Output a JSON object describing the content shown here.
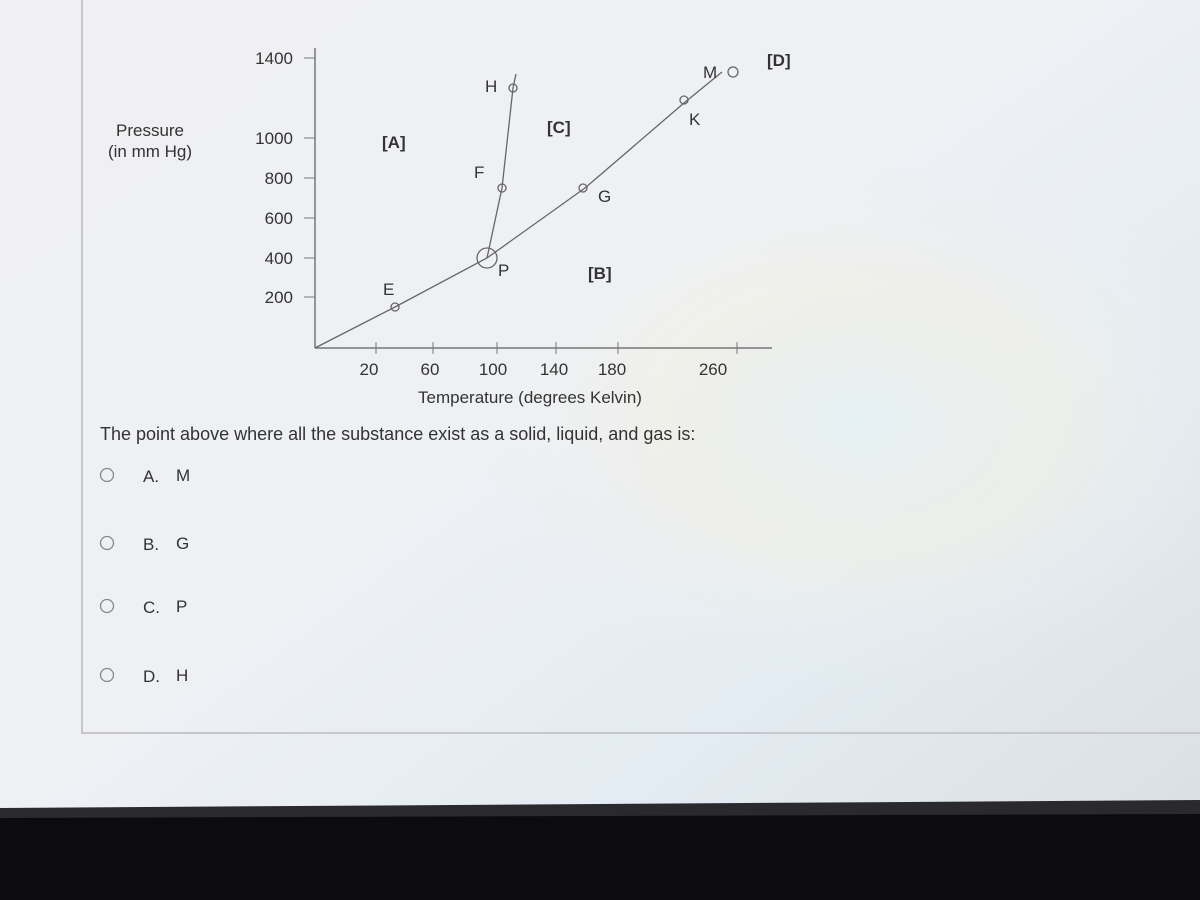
{
  "diagram": {
    "y_axis_label": [
      "Pressure",
      "(in mm Hg)"
    ],
    "x_axis_label": "Temperature (degrees Kelvin)",
    "y_ticks": [
      1400,
      1000,
      800,
      600,
      400,
      200
    ],
    "x_ticks": [
      20,
      60,
      100,
      140,
      180,
      260
    ],
    "points": [
      "H",
      "M",
      "K",
      "F",
      "G",
      "P",
      "E"
    ],
    "regions": [
      "[A]",
      "[C]",
      "[B]",
      "[D]"
    ]
  },
  "question": "The point above where all the substance exist as a solid, liquid, and gas is:",
  "options": [
    {
      "letter": "A.",
      "text": "M"
    },
    {
      "letter": "B.",
      "text": "G"
    },
    {
      "letter": "C.",
      "text": "P"
    },
    {
      "letter": "D.",
      "text": "H"
    }
  ]
}
